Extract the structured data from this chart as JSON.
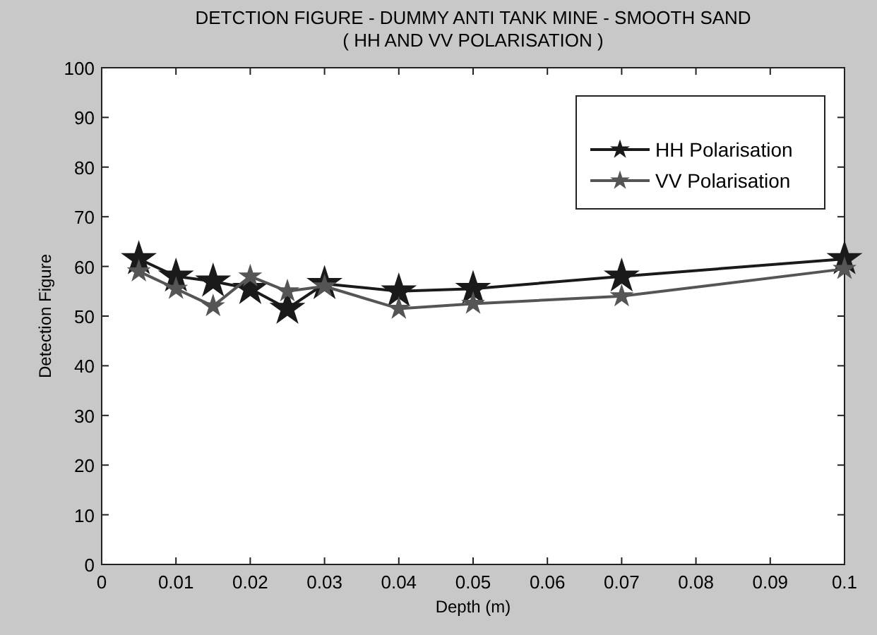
{
  "chart_data": {
    "type": "line",
    "title": "DETCTION FIGURE - DUMMY ANTI TANK MINE - SMOOTH SAND",
    "subtitle": "( HH AND VV POLARISATION )",
    "xlabel": "Depth (m)",
    "ylabel": "Detection Figure",
    "x": [
      0.005,
      0.01,
      0.015,
      0.02,
      0.025,
      0.03,
      0.04,
      0.05,
      0.07,
      0.1
    ],
    "series": [
      {
        "name": "HH Polarisation",
        "color": "#1a1a1a",
        "values": [
          61.5,
          58,
          57,
          55.5,
          51.5,
          56.5,
          55,
          55.5,
          58,
          61.5
        ]
      },
      {
        "name": "VV Polarisation",
        "color": "#555555",
        "values": [
          59,
          55.5,
          52,
          58,
          55,
          56,
          51.5,
          52.5,
          54,
          59.5
        ]
      }
    ],
    "xlim": [
      0,
      0.1
    ],
    "xticks": [
      0,
      0.01,
      0.02,
      0.03,
      0.04,
      0.05,
      0.06,
      0.07,
      0.08,
      0.09,
      0.1
    ],
    "ylim": [
      0,
      100
    ],
    "yticks": [
      0,
      10,
      20,
      30,
      40,
      50,
      60,
      70,
      80,
      90,
      100
    ],
    "grid": false,
    "legend": "top right",
    "marker": "star",
    "line_style": "solid"
  }
}
